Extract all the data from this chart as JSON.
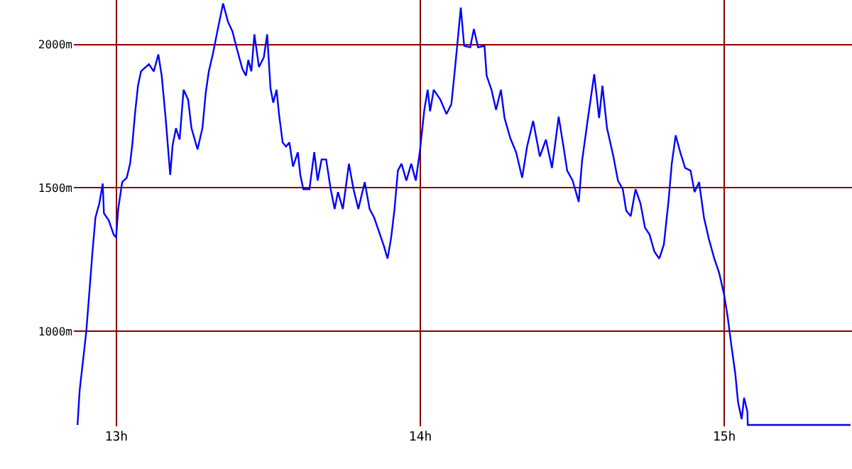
{
  "chart_data": {
    "type": "line",
    "xlim": [
      12.86,
      15.42
    ],
    "ylim": [
      668,
      2155
    ],
    "xticks": [
      {
        "value": 13,
        "label": "13h"
      },
      {
        "value": 14,
        "label": "14h"
      },
      {
        "value": 15,
        "label": "15h"
      }
    ],
    "yticks": [
      {
        "value": 1000,
        "label": "1000m"
      },
      {
        "value": 1500,
        "label": "1500m"
      },
      {
        "value": 2000,
        "label": "2000m"
      }
    ],
    "grid": true,
    "marker": "none",
    "line_style": "solid",
    "series": [
      {
        "color": "#0000ff",
        "x": [
          12.872,
          12.879,
          12.901,
          12.913,
          12.921,
          12.931,
          12.944,
          12.955,
          12.959,
          12.975,
          12.991,
          12.999,
          13.006,
          13.019,
          13.034,
          13.045,
          13.053,
          13.061,
          13.071,
          13.081,
          13.107,
          13.123,
          13.138,
          13.149,
          13.162,
          13.171,
          13.177,
          13.185,
          13.196,
          13.208,
          13.221,
          13.236,
          13.247,
          13.267,
          13.283,
          13.294,
          13.304,
          13.317,
          13.332,
          13.351,
          13.367,
          13.382,
          13.395,
          13.414,
          13.426,
          13.434,
          13.444,
          13.454,
          13.469,
          13.485,
          13.496,
          13.507,
          13.516,
          13.527,
          13.535,
          13.547,
          13.558,
          13.569,
          13.581,
          13.597,
          13.605,
          13.615,
          13.635,
          13.651,
          13.662,
          13.675,
          13.69,
          13.705,
          13.718,
          13.729,
          13.745,
          13.765,
          13.78,
          13.796,
          13.817,
          13.833,
          13.848,
          13.864,
          13.88,
          13.892,
          13.904,
          13.915,
          13.926,
          13.938,
          13.954,
          13.97,
          13.985,
          13.998,
          14.013,
          14.024,
          14.032,
          14.044,
          14.066,
          14.086,
          14.102,
          14.113,
          14.122,
          14.133,
          14.144,
          14.164,
          14.176,
          14.19,
          14.211,
          14.218,
          14.234,
          14.249,
          14.265,
          14.277,
          14.296,
          14.315,
          14.335,
          14.351,
          14.371,
          14.393,
          14.413,
          14.433,
          14.455,
          14.47,
          14.483,
          14.501,
          14.521,
          14.532,
          14.552,
          14.572,
          14.588,
          14.599,
          14.614,
          14.635,
          14.65,
          14.666,
          14.677,
          14.692,
          14.708,
          14.724,
          14.739,
          14.754,
          14.77,
          14.786,
          14.801,
          14.817,
          14.827,
          14.84,
          14.855,
          14.871,
          14.889,
          14.902,
          14.917,
          14.933,
          14.949,
          14.967,
          14.983,
          14.999,
          15.011,
          15.023,
          15.036,
          15.045,
          15.057,
          15.065,
          15.076,
          15.077,
          15.415
        ],
        "values": [
          673,
          792,
          1000,
          1163,
          1272,
          1396,
          1446,
          1515,
          1411,
          1386,
          1337,
          1327,
          1426,
          1520,
          1535,
          1584,
          1658,
          1757,
          1856,
          1906,
          1931,
          1906,
          1965,
          1891,
          1743,
          1624,
          1545,
          1649,
          1708,
          1668,
          1842,
          1807,
          1708,
          1634,
          1708,
          1832,
          1906,
          1965,
          2045,
          2143,
          2079,
          2045,
          1990,
          1916,
          1891,
          1946,
          1906,
          2035,
          1921,
          1955,
          2035,
          1847,
          1797,
          1842,
          1757,
          1658,
          1644,
          1658,
          1574,
          1624,
          1545,
          1495,
          1495,
          1624,
          1525,
          1599,
          1599,
          1495,
          1426,
          1485,
          1426,
          1584,
          1495,
          1426,
          1520,
          1426,
          1396,
          1347,
          1297,
          1253,
          1327,
          1426,
          1560,
          1584,
          1525,
          1584,
          1525,
          1624,
          1772,
          1842,
          1767,
          1842,
          1807,
          1757,
          1792,
          1906,
          2005,
          2129,
          1995,
          1990,
          2054,
          1990,
          1995,
          1891,
          1842,
          1772,
          1842,
          1743,
          1673,
          1624,
          1535,
          1644,
          1733,
          1609,
          1668,
          1569,
          1748,
          1649,
          1560,
          1525,
          1451,
          1594,
          1748,
          1896,
          1743,
          1856,
          1708,
          1609,
          1525,
          1495,
          1421,
          1401,
          1495,
          1446,
          1361,
          1337,
          1277,
          1253,
          1302,
          1460,
          1584,
          1683,
          1624,
          1569,
          1560,
          1485,
          1520,
          1396,
          1322,
          1253,
          1203,
          1129,
          1050,
          951,
          852,
          753,
          693,
          768,
          718,
          673,
          673
        ]
      }
    ]
  }
}
